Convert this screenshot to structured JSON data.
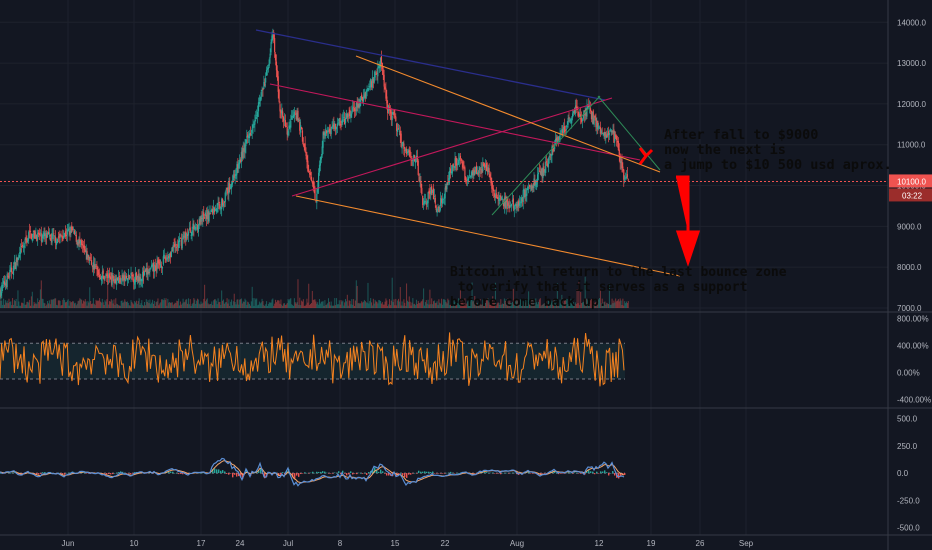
{
  "chart_data": [
    {
      "type": "candlestick",
      "panel": "price",
      "y_ticks": [
        "14000.0",
        "13000.0",
        "12000.0",
        "11000.0",
        "10000.0",
        "9000.0",
        "8000.0",
        "7000.0"
      ],
      "ylim": [
        6950,
        14350
      ],
      "x_ticks": [
        "Jun",
        "10",
        "17",
        "24",
        "Jul",
        "8",
        "15",
        "22",
        "Aug",
        "12",
        "19",
        "26",
        "Sep"
      ],
      "close_path": [
        [
          0,
          7400
        ],
        [
          5,
          8200
        ],
        [
          8,
          8800
        ],
        [
          12,
          8750
        ],
        [
          16,
          8700
        ],
        [
          20,
          8900
        ],
        [
          24,
          8300
        ],
        [
          28,
          7800
        ],
        [
          34,
          7700
        ],
        [
          40,
          7800
        ],
        [
          45,
          8100
        ],
        [
          52,
          8800
        ],
        [
          58,
          9300
        ],
        [
          62,
          9600
        ],
        [
          66,
          10400
        ],
        [
          70,
          11400
        ],
        [
          74,
          12600
        ],
        [
          76,
          13700
        ],
        [
          78,
          11900
        ],
        [
          80,
          11300
        ],
        [
          82,
          11900
        ],
        [
          84,
          11300
        ],
        [
          86,
          10300
        ],
        [
          88,
          9700
        ],
        [
          90,
          11200
        ],
        [
          92,
          11400
        ],
        [
          96,
          11600
        ],
        [
          100,
          12000
        ],
        [
          104,
          12600
        ],
        [
          106,
          13100
        ],
        [
          108,
          11900
        ],
        [
          110,
          11600
        ],
        [
          112,
          11000
        ],
        [
          116,
          10600
        ],
        [
          118,
          9500
        ],
        [
          120,
          9900
        ],
        [
          122,
          9400
        ],
        [
          124,
          9900
        ],
        [
          126,
          10500
        ],
        [
          128,
          10700
        ],
        [
          130,
          10100
        ],
        [
          132,
          10400
        ],
        [
          136,
          10400
        ],
        [
          138,
          9700
        ],
        [
          140,
          9600
        ],
        [
          142,
          9500
        ],
        [
          144,
          9550
        ],
        [
          146,
          9800
        ],
        [
          150,
          10200
        ],
        [
          152,
          10500
        ],
        [
          154,
          10900
        ],
        [
          156,
          11200
        ],
        [
          158,
          11500
        ],
        [
          160,
          11900
        ],
        [
          162,
          11600
        ],
        [
          164,
          11900
        ],
        [
          166,
          11500
        ],
        [
          168,
          11300
        ],
        [
          170,
          11350
        ],
        [
          172,
          11000
        ],
        [
          174,
          10100
        ],
        [
          175,
          10100
        ]
      ],
      "current_price": "10100.0",
      "countdown": "03:22",
      "annotations": [
        "After fall to $9000\nnow the next is\na jump to $10 500 usd aprox.",
        "Bitcoin will return to the last bounce zone\n to verify that it serves as a support\nbefore come back up."
      ],
      "colors": {
        "up": "#26a69a",
        "down": "#ef5350",
        "trend_navy": "#2a2e8c",
        "trend_red": "#c2185b",
        "trend_orange": "#f28a2e",
        "arrow": "#ff0000"
      }
    },
    {
      "type": "line",
      "panel": "oscillator",
      "y_ticks": [
        "800.00%",
        "400.00%",
        "0.00%",
        "-400.00%"
      ],
      "ylim": [
        -500,
        850
      ],
      "band": [
        -100,
        430
      ],
      "series": [
        {
          "color": "#f5821f"
        }
      ]
    },
    {
      "type": "line",
      "panel": "macd",
      "y_ticks": [
        "500.0",
        "250.0",
        "0.0",
        "-250.0",
        "-500.0"
      ],
      "ylim": [
        -540,
        560
      ],
      "series": [
        {
          "color": "#5b8fd6"
        },
        {
          "color": "#f5a66b"
        }
      ],
      "histogram_colors": [
        "#26a69a",
        "#ef5350"
      ]
    }
  ]
}
